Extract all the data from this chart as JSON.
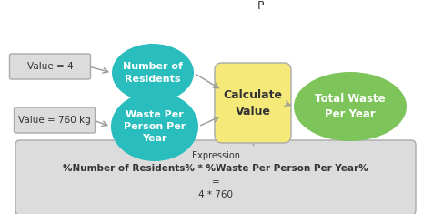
{
  "bg_color": "#ffffff",
  "title_p": "P",
  "value1_label": "Value = 4",
  "value2_label": "Value = 760 kg",
  "node1_label": "Number of\nResidents",
  "node2_label": "Waste Per\nPerson Per\nYear",
  "calc_label": "Calculate\nValue",
  "output_label": "Total Waste\nPer Year",
  "expr_title": "Expression",
  "expr_line1": "%Number of Residents% * %Waste Per Person Per Year%",
  "expr_line2": "=",
  "expr_line3": "4 * 760",
  "teal_color": "#29BDBD",
  "yellow_color": "#F5E97A",
  "green_color": "#7DC45A",
  "box_face": "#DCDCDC",
  "box_edge": "#AAAAAA",
  "text_color": "#333333",
  "arrow_color": "#999999"
}
